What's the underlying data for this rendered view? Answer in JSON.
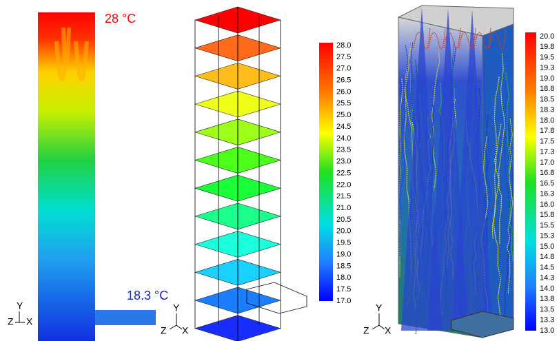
{
  "panel1": {
    "top_label": "28 °C",
    "inlet_label": "18.3 °C",
    "axes": {
      "y": "Y",
      "z": "Z",
      "x": "X"
    }
  },
  "panel2": {
    "axes": {
      "y": "Y",
      "z": "Z",
      "x": "X"
    },
    "colorbar": [
      "28.0",
      "27.5",
      "27.0",
      "26.5",
      "26.0",
      "25.5",
      "25.0",
      "24.5",
      "24.0",
      "23.5",
      "23.0",
      "22.5",
      "22.0",
      "21.5",
      "21.0",
      "20.5",
      "20.0",
      "19.5",
      "19.0",
      "18.5",
      "18.0",
      "17.5",
      "17.0"
    ]
  },
  "panel3": {
    "axes": {
      "y": "Y",
      "z": "Z",
      "x": "X"
    },
    "colorbar": [
      "20.0",
      "19.8",
      "19.5",
      "19.3",
      "19.0",
      "18.8",
      "18.5",
      "18.3",
      "18.0",
      "17.8",
      "17.5",
      "17.3",
      "17.0",
      "16.8",
      "16.5",
      "16.3",
      "16.0",
      "15.8",
      "15.5",
      "15.3",
      "15.0",
      "14.8",
      "14.5",
      "14.3",
      "14.0",
      "13.8",
      "13.5",
      "13.3",
      "13.0"
    ]
  }
}
